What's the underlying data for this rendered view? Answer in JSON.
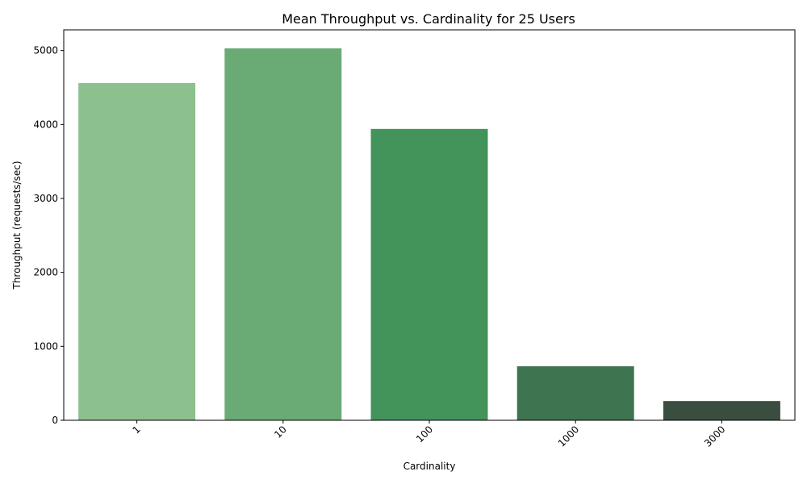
{
  "chart_data": {
    "type": "bar",
    "title": "Mean Throughput vs. Cardinality for 25 Users",
    "xlabel": "Cardinality",
    "ylabel": "Throughput (requests/sec)",
    "categories": [
      "1",
      "10",
      "100",
      "1000",
      "3000"
    ],
    "values": [
      4560,
      5030,
      3940,
      730,
      260
    ],
    "colors": [
      "#8dc08f",
      "#6aab75",
      "#42945a",
      "#3e744f",
      "#394e3f"
    ],
    "ylim": [
      0,
      5280
    ],
    "yticks": [
      0,
      1000,
      2000,
      3000,
      4000,
      5000
    ],
    "grid": false,
    "legend": "none",
    "x_tick_rotation": 45
  }
}
